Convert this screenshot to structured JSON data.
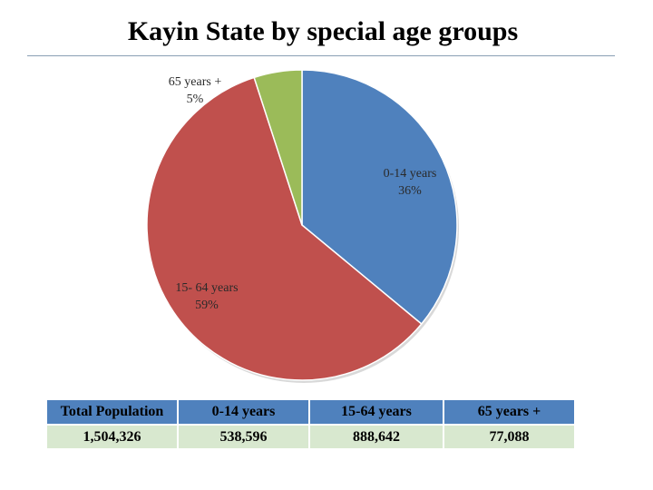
{
  "chart_data": {
    "type": "pie",
    "title": "Kayin State by special age groups",
    "slices": [
      {
        "name": "0-14 years",
        "label_line1": "0-14 years",
        "label_line2": "36%",
        "percent": 36,
        "value": 538596,
        "color": "#4f81bd"
      },
      {
        "name": "15- 64 years",
        "label_line1": "15- 64 years",
        "label_line2": "59%",
        "percent": 59,
        "value": 888642,
        "color": "#c0504d"
      },
      {
        "name": "65 years +",
        "label_line1": "65 years +",
        "label_line2": "5%",
        "percent": 5,
        "value": 77088,
        "color": "#9bbb59"
      }
    ]
  },
  "table": {
    "headers": [
      "Total Population",
      "0-14 years",
      "15-64  years",
      "65 years +"
    ],
    "values": [
      "1,504,326",
      "538,596",
      "888,642",
      "77,088"
    ]
  }
}
